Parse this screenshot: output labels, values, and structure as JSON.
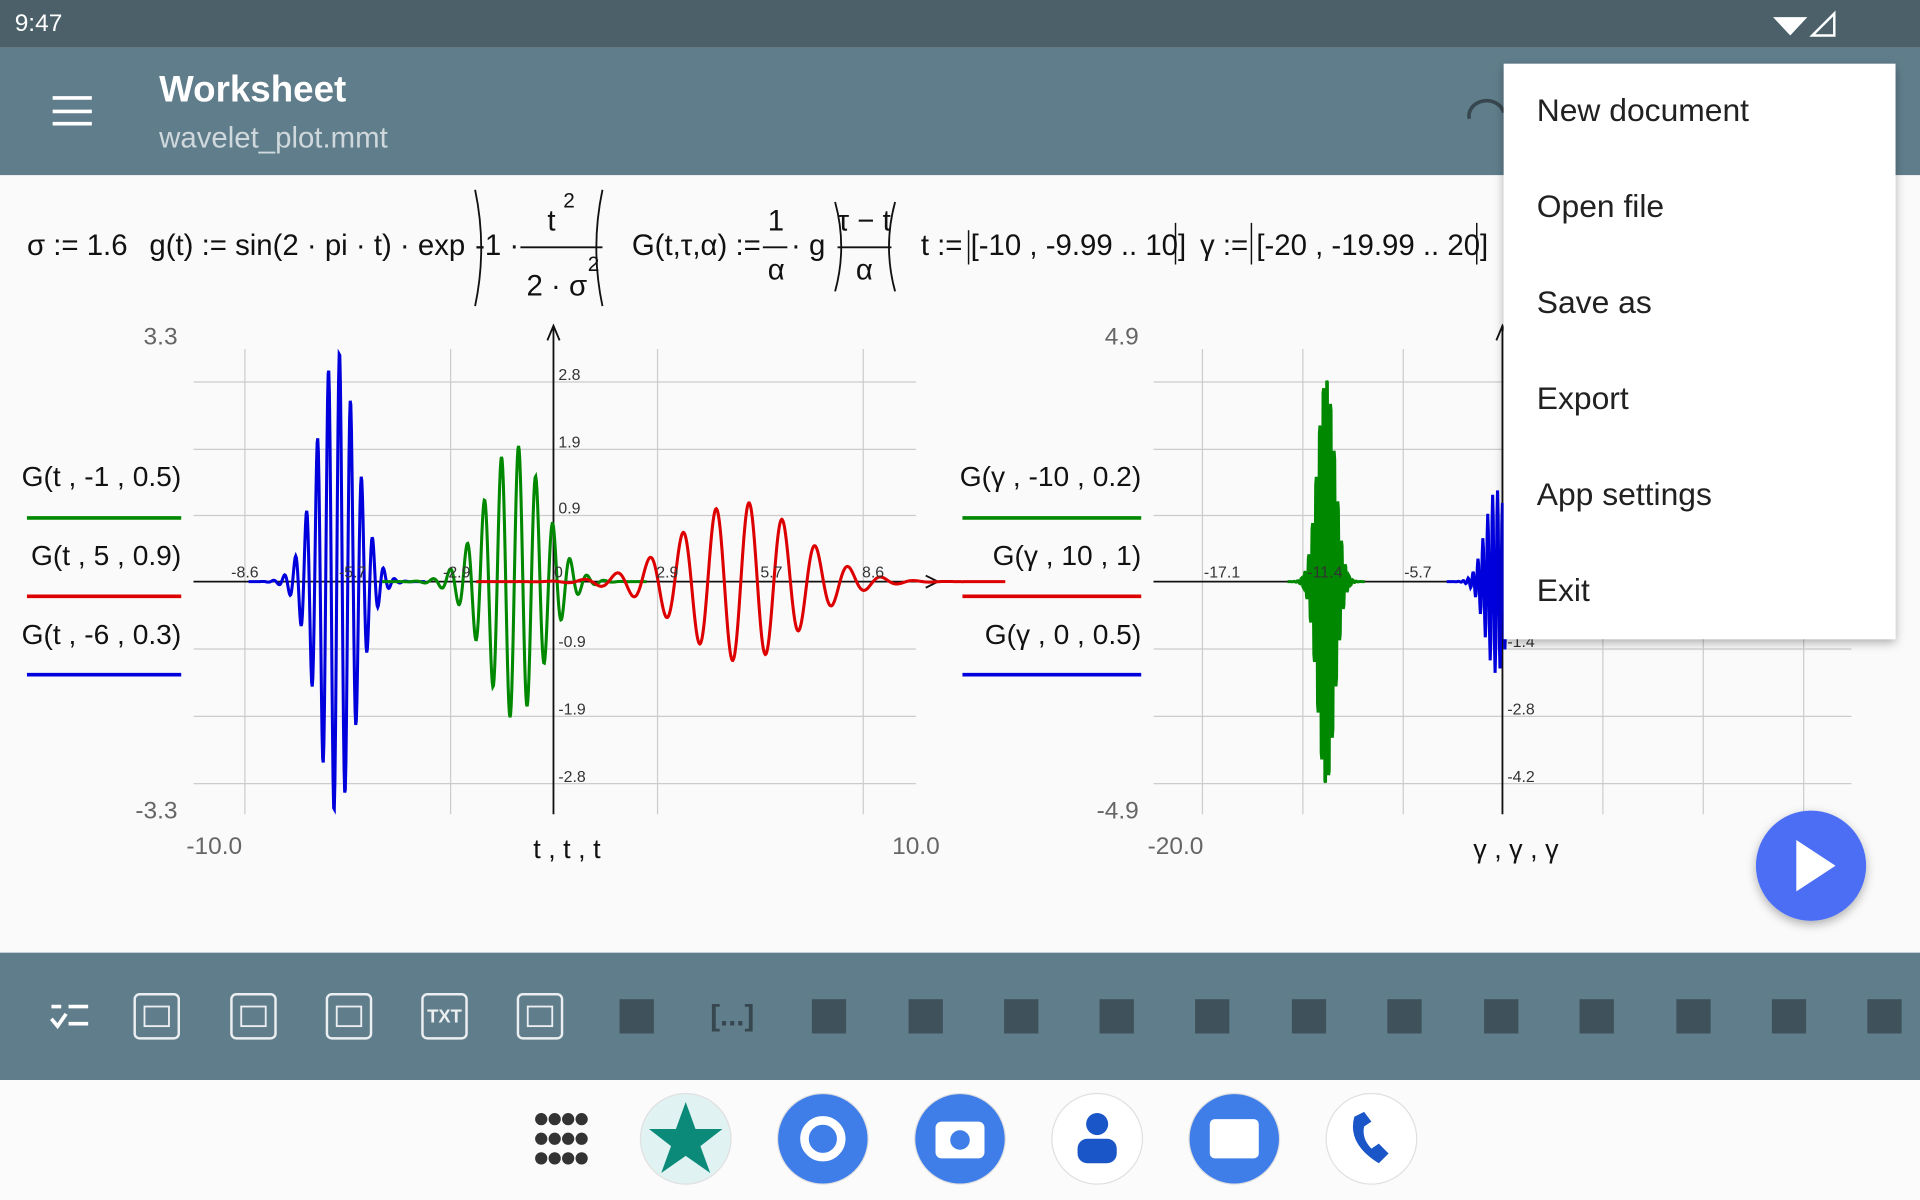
{
  "status_bar": {
    "time": "9:47"
  },
  "app_bar": {
    "title": "Worksheet",
    "subtitle": "wavelet_plot.mmt"
  },
  "formulas": [
    "σ := 1.6",
    "g(t) := sin(2 · pi · t) · exp",
    "-1 ·",
    "t",
    "2",
    "2 · σ",
    "2",
    "G(t,τ,α) :=",
    "1",
    "α",
    "· g",
    "τ − t",
    "α",
    "t := [-10 , -9.99 .. 10]",
    "γ := [-20 , -19.99 .. 20]"
  ],
  "plots": [
    {
      "y_max_label": "3.3",
      "y_min_label": "-3.3",
      "x_min_label": "-10.0",
      "x_max_label": "10.0",
      "x_axis_label": "t , t , t",
      "x_ticks": [
        "-8.6",
        "-5.7",
        "-2.9",
        "0",
        "2.9",
        "5.7",
        "8.6"
      ],
      "y_ticks": [
        "2.8",
        "1.9",
        "0.9",
        "-0.9",
        "-1.9",
        "-2.8"
      ],
      "legend": [
        "G(t , -1 , 0.5)",
        "G(t , 5 , 0.9)",
        "G(t , -6 , 0.3)"
      ]
    },
    {
      "y_max_label": "4.9",
      "y_min_label": "-4.9",
      "x_min_label": "-20.0",
      "x_axis_label": "γ , γ , γ",
      "x_ticks": [
        "-17.1",
        "-11.4",
        "-5.7"
      ],
      "y_ticks": [
        "-1.4",
        "-2.8",
        "-4.2"
      ],
      "legend": [
        "G(γ , -10 , 0.2)",
        "G(γ , 10 , 1)",
        "G(γ , 0 , 0.5)"
      ]
    }
  ],
  "menu": {
    "items": [
      "New document",
      "Open file",
      "Save as",
      "Export",
      "App settings",
      "Exit"
    ]
  },
  "toolbar": {
    "labels": [
      "TXT",
      "[...]"
    ]
  }
}
